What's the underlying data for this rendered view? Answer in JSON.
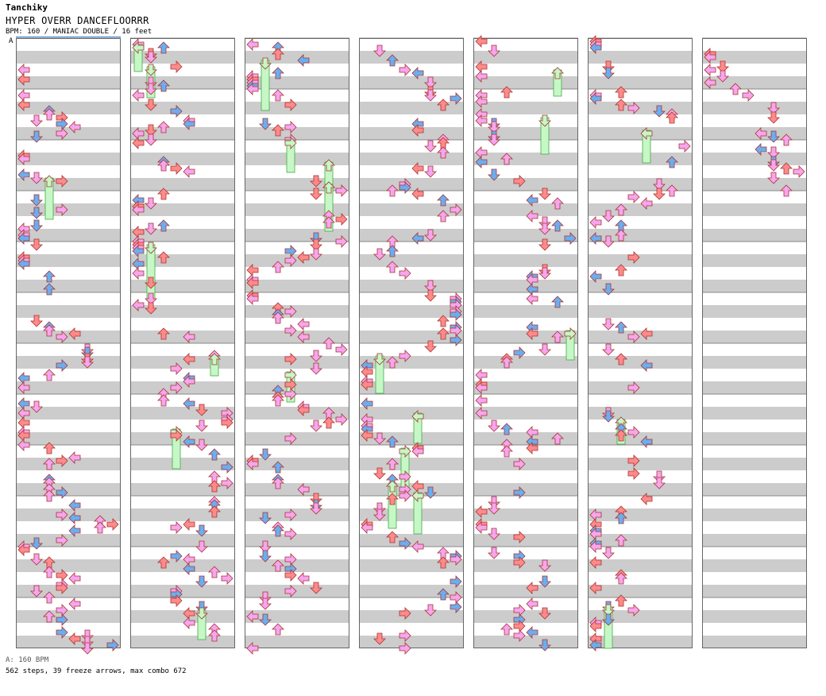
{
  "header": {
    "author": "Tanchiky",
    "song_title": "HYPER OVERR DANCEFLOORRR",
    "info": "BPM: 160 / MANIAC DOUBLE / 16 feet",
    "section_marker": "A"
  },
  "footer": {
    "bpm_line": "A: 160 BPM",
    "stats_line": "562 steps, 39 freeze arrows, max combo 672"
  },
  "colors": {
    "quarter_red": "#ff8a8a",
    "eighth_blue": "#6aaef0",
    "sixteenth_pink": "#f5a6ee",
    "freeze_green": "#c6f7c6",
    "shock_green": "#44dd44",
    "stripe_gray": "#cccccc",
    "measure_line": "#888888"
  },
  "chart_data": {
    "type": "table",
    "title": "HYPER OVERR DANCEFLOORRR",
    "lanes": [
      "L",
      "D",
      "U",
      "R",
      "L",
      "D",
      "U",
      "R"
    ],
    "columns": 7,
    "measures_per_column": 12,
    "step_count": 562,
    "freeze_count": 39,
    "max_combo": 672
  }
}
